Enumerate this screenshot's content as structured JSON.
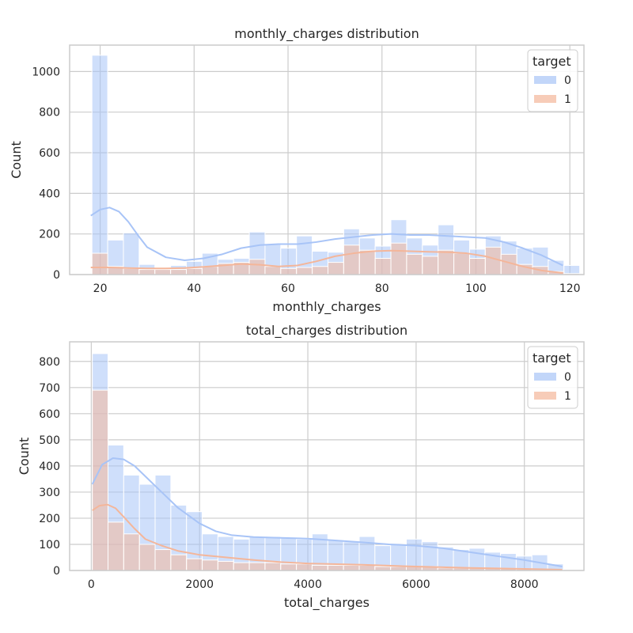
{
  "chart_data": [
    {
      "type": "histogram",
      "title": "monthly_charges distribution",
      "xlabel": "monthly_charges",
      "ylabel": "Count",
      "xlim": [
        13.5,
        123
      ],
      "ylim": [
        0,
        1130
      ],
      "xticks": [
        20,
        40,
        60,
        80,
        100,
        120
      ],
      "yticks": [
        0,
        200,
        400,
        600,
        800,
        1000
      ],
      "grid": true,
      "legend": {
        "title": "target",
        "placement": "top-right",
        "entries": [
          "0",
          "1"
        ]
      },
      "colors": {
        "0": "#a8c4f7",
        "1": "#f4b69a"
      },
      "bin_start": 18.25,
      "bin_width": 3.35,
      "series": [
        {
          "name": "0",
          "counts": [
            1080,
            170,
            205,
            50,
            25,
            45,
            65,
            105,
            75,
            80,
            210,
            150,
            130,
            190,
            115,
            110,
            225,
            180,
            140,
            270,
            180,
            145,
            245,
            170,
            125,
            190,
            165,
            130,
            135,
            70,
            45
          ],
          "kde_x": [
            18,
            20,
            22,
            24,
            26,
            28,
            30,
            34,
            38,
            42,
            46,
            50,
            54,
            58,
            62,
            66,
            70,
            74,
            78,
            82,
            86,
            90,
            94,
            98,
            102,
            106,
            110,
            114,
            118.5
          ],
          "kde_y": [
            290,
            320,
            330,
            310,
            260,
            195,
            135,
            85,
            70,
            80,
            100,
            130,
            145,
            150,
            150,
            160,
            175,
            185,
            195,
            200,
            195,
            195,
            190,
            185,
            180,
            160,
            130,
            95,
            45
          ]
        },
        {
          "name": "1",
          "counts": [
            105,
            40,
            30,
            25,
            25,
            25,
            30,
            40,
            55,
            60,
            75,
            40,
            30,
            35,
            40,
            60,
            145,
            120,
            80,
            155,
            100,
            90,
            120,
            105,
            80,
            135,
            100,
            50,
            40,
            15,
            5
          ],
          "kde_x": [
            18,
            22,
            26,
            30,
            34,
            38,
            42,
            46,
            50,
            54,
            58,
            62,
            66,
            70,
            74,
            78,
            82,
            86,
            90,
            94,
            98,
            102,
            106,
            110,
            114,
            118.5
          ],
          "kde_y": [
            35,
            35,
            32,
            30,
            30,
            32,
            38,
            45,
            52,
            48,
            40,
            45,
            65,
            90,
            105,
            115,
            118,
            115,
            112,
            110,
            105,
            90,
            65,
            40,
            20,
            8
          ]
        }
      ]
    },
    {
      "type": "histogram",
      "title": "total_charges distribution",
      "xlabel": "total_charges",
      "ylabel": "Count",
      "xlim": [
        -400,
        9100
      ],
      "ylim": [
        0,
        875
      ],
      "xticks": [
        0,
        2000,
        4000,
        6000,
        8000
      ],
      "yticks": [
        0,
        100,
        200,
        300,
        400,
        500,
        600,
        700,
        800
      ],
      "grid": true,
      "legend": {
        "title": "target",
        "placement": "top-right",
        "entries": [
          "0",
          "1"
        ]
      },
      "colors": {
        "0": "#a8c4f7",
        "1": "#f4b69a"
      },
      "bin_start": 19,
      "bin_width": 290,
      "series": [
        {
          "name": "0",
          "counts": [
            830,
            480,
            365,
            330,
            365,
            250,
            225,
            140,
            130,
            120,
            130,
            130,
            125,
            120,
            140,
            115,
            110,
            130,
            95,
            100,
            120,
            110,
            90,
            80,
            85,
            70,
            65,
            55,
            60,
            25
          ],
          "kde_x": [
            19,
            200,
            400,
            600,
            800,
            1000,
            1300,
            1600,
            2000,
            2300,
            2600,
            3000,
            3500,
            4000,
            4500,
            5000,
            5500,
            6000,
            6500,
            7000,
            7500,
            8000,
            8700
          ],
          "kde_y": [
            330,
            405,
            430,
            425,
            400,
            360,
            300,
            240,
            180,
            150,
            135,
            128,
            125,
            122,
            115,
            108,
            100,
            95,
            85,
            70,
            55,
            40,
            15
          ]
        },
        {
          "name": "1",
          "counts": [
            690,
            185,
            140,
            100,
            80,
            60,
            45,
            40,
            35,
            30,
            30,
            30,
            25,
            25,
            20,
            20,
            20,
            20,
            15,
            15,
            15,
            15,
            10,
            10,
            10,
            8,
            6,
            5,
            4,
            3
          ],
          "kde_x": [
            19,
            150,
            300,
            450,
            600,
            800,
            1000,
            1300,
            1600,
            2000,
            2500,
            3000,
            3500,
            4000,
            5000,
            6000,
            7000,
            8000,
            8700
          ],
          "kde_y": [
            230,
            248,
            252,
            238,
            205,
            160,
            120,
            95,
            75,
            60,
            50,
            40,
            32,
            27,
            22,
            15,
            10,
            6,
            3
          ]
        }
      ]
    }
  ]
}
